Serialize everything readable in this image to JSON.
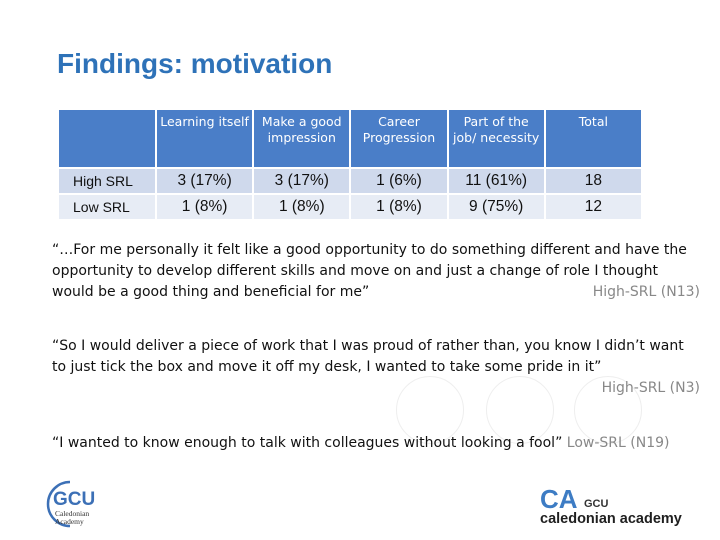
{
  "slide": {
    "title": "Findings: motivation"
  },
  "table": {
    "headers": [
      "",
      "Learning itself",
      "Make a good impression",
      "Career Progression",
      "Part of the job/ necessity",
      "Total"
    ],
    "rows": [
      {
        "label": "High SRL",
        "cells": [
          "3 (17%)",
          "3 (17%)",
          "1 (6%)",
          "11 (61%)",
          "18"
        ]
      },
      {
        "label": "Low SRL",
        "cells": [
          "1 (8%)",
          "1 (8%)",
          "1 (8%)",
          "9 (75%)",
          "12"
        ]
      }
    ]
  },
  "quotes": [
    {
      "text": "“…For me personally it felt like a good opportunity to do something different and have the opportunity to develop different skills and move on and just a change of role I thought would be a good thing and beneficial for me”",
      "source": "High-SRL (N13)"
    },
    {
      "text": "“So I would deliver a piece of work that I was proud of rather than, you know I didn’t want to just tick the box and move it off my desk, I wanted to take some pride in it”",
      "source": "High-SRL (N3)"
    },
    {
      "text": "“I wanted to know enough to talk with colleagues without looking a fool”",
      "source": "Low-SRL (N19)"
    }
  ],
  "logos": {
    "gcu": {
      "acronym": "GCU",
      "line1": "Caledonian",
      "line2": "Academy"
    },
    "caledonian_academy": {
      "mark": "CA",
      "small": "GCU",
      "name": "caledonian academy"
    }
  },
  "colors": {
    "title": "#2e72b8",
    "header_bg": "#4a7ec8",
    "row_high_bg": "#cfd9ec",
    "row_low_bg": "#e7ecf5",
    "source_text": "#888888"
  }
}
